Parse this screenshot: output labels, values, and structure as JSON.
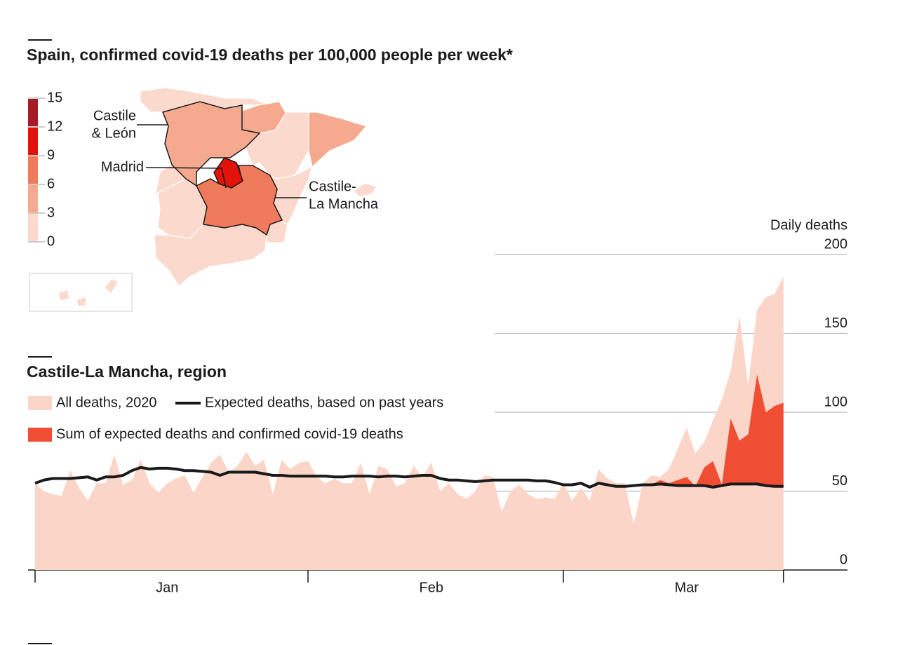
{
  "title": "Spain, confirmed covid-19 deaths per 100,000 people per week*",
  "map": {
    "scale": {
      "ticks": [
        0,
        3,
        6,
        9,
        12,
        15
      ],
      "colors": [
        "#fbd9cc",
        "#f5aa90",
        "#f07b5c",
        "#e3120b",
        "#a51b27"
      ]
    },
    "labels": {
      "castile_leon": [
        "Castile",
        "& León"
      ],
      "madrid": [
        "Madrid"
      ],
      "castile_la_mancha": [
        "Castile-",
        "La Mancha"
      ]
    }
  },
  "chart_data": {
    "type": "area",
    "title": "Castile-La Mancha, region",
    "y_label": "Daily deaths",
    "categories": [
      null,
      null,
      null,
      null,
      null,
      null,
      null,
      null,
      null,
      null,
      null,
      null,
      null,
      null,
      null,
      "Jan",
      null,
      null,
      null,
      null,
      null,
      null,
      null,
      null,
      null,
      null,
      null,
      null,
      null,
      null,
      null,
      null,
      null,
      null,
      null,
      null,
      null,
      null,
      null,
      null,
      null,
      null,
      null,
      null,
      null,
      "Feb",
      null,
      null,
      null,
      null,
      null,
      null,
      null,
      null,
      null,
      null,
      null,
      null,
      null,
      null,
      null,
      null,
      null,
      null,
      null,
      null,
      null,
      null,
      null,
      null,
      null,
      null,
      null,
      null,
      "Mar",
      null,
      null,
      null,
      null,
      null,
      null,
      null,
      null,
      null,
      null,
      null
    ],
    "xticks": [
      0,
      31,
      60,
      85
    ],
    "ylim": [
      0,
      200
    ],
    "yticks": [
      0,
      50,
      100,
      150,
      200
    ],
    "grid": true,
    "series": [
      {
        "name": "All deaths, 2020",
        "color": "#fbd5c8",
        "style": "area",
        "values": [
          55,
          50,
          48,
          47,
          63,
          52,
          44,
          55,
          55,
          73,
          54,
          57,
          70,
          55,
          49,
          55,
          58,
          60,
          49,
          59,
          68,
          73,
          62,
          66,
          75,
          66,
          70,
          48,
          70,
          64,
          68,
          69,
          59,
          55,
          58,
          55,
          55,
          68,
          48,
          66,
          64,
          53,
          55,
          66,
          59,
          68,
          50,
          55,
          48,
          45,
          50,
          60,
          59,
          37,
          50,
          54,
          48,
          45,
          46,
          45,
          55,
          44,
          52,
          44,
          64,
          58,
          55,
          55,
          29,
          55,
          60,
          59,
          64,
          77,
          90,
          74,
          81,
          95,
          108,
          126,
          161,
          117,
          165,
          173,
          175,
          186
        ]
      },
      {
        "name": "Expected deaths, based on past years",
        "color": "#1a1a1a",
        "style": "line",
        "values": [
          55,
          57,
          58,
          58,
          58,
          58.5,
          59,
          57,
          59,
          59,
          60,
          63,
          65,
          64,
          64.5,
          64.5,
          64,
          63,
          63,
          62.5,
          62,
          60,
          62,
          62,
          62,
          62,
          61,
          60,
          60,
          59.5,
          59.5,
          59.5,
          59.5,
          59.5,
          59,
          59,
          59.5,
          59.5,
          59.5,
          59,
          59.5,
          59.5,
          59,
          59.5,
          60,
          60,
          58,
          57,
          57,
          56.5,
          56,
          56.5,
          57,
          57,
          57,
          57,
          57,
          56.5,
          56.5,
          55.5,
          54,
          54,
          55,
          52.5,
          55,
          54,
          53,
          53,
          53.5,
          54,
          54,
          54.5,
          54,
          53.5,
          53.5,
          53.5,
          53.5,
          52.5,
          53.5,
          54.5,
          54.5,
          54.5,
          54.5,
          53.5,
          53,
          53
        ]
      },
      {
        "name": "Sum of expected deaths and confirmed covid-19 deaths",
        "color": "#f04e33",
        "style": "area",
        "values": [
          null,
          null,
          null,
          null,
          null,
          null,
          null,
          null,
          null,
          null,
          null,
          null,
          null,
          null,
          null,
          null,
          null,
          null,
          null,
          null,
          null,
          null,
          null,
          null,
          null,
          null,
          null,
          null,
          null,
          null,
          null,
          null,
          null,
          null,
          null,
          null,
          null,
          null,
          null,
          null,
          null,
          null,
          null,
          null,
          null,
          null,
          null,
          null,
          null,
          null,
          null,
          null,
          null,
          null,
          null,
          null,
          null,
          null,
          null,
          null,
          null,
          null,
          null,
          null,
          null,
          null,
          null,
          null,
          null,
          null,
          54,
          57,
          55,
          57,
          59,
          53,
          65,
          69,
          54,
          96,
          82,
          86,
          124,
          100,
          104,
          106
        ]
      }
    ]
  }
}
